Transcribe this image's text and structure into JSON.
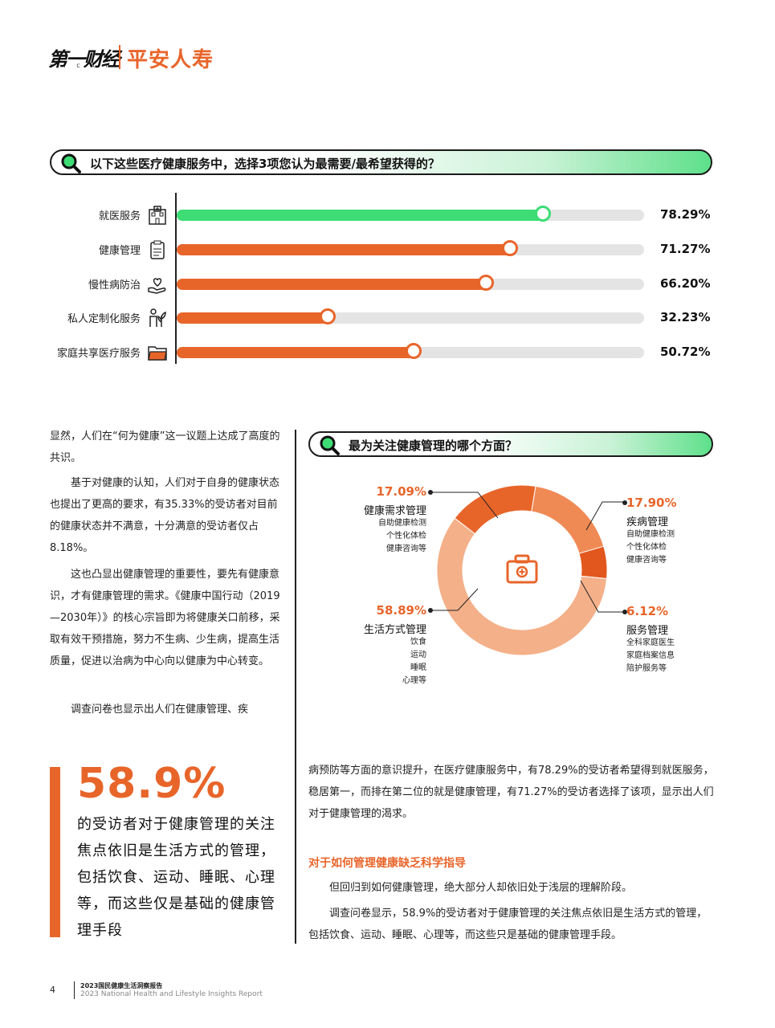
{
  "header": {
    "logo_yicai": "第一财经",
    "logo_yicai_sub": "YICAI",
    "logo_pingan": "平安人寿"
  },
  "chart_question": "以下这些医疗健康服务中，选择3项您认为最需要/最希望获得的？",
  "chart_data": [
    {
      "type": "bar",
      "orientation": "horizontal",
      "title": "以下这些医疗健康服务中，选择3项您认为最需要/最希望获得的？",
      "categories": [
        "就医服务",
        "健康管理",
        "慢性病防治",
        "私人定制化服务",
        "家庭共享医疗服务"
      ],
      "values": [
        78.29,
        71.27,
        66.2,
        32.23,
        50.72
      ],
      "value_labels": [
        "78.29%",
        "71.27%",
        "66.20%",
        "32.23%",
        "50.72%"
      ],
      "icons": [
        "hospital-icon",
        "clipboard-icon",
        "heart-hand-icon",
        "person-plant-icon",
        "folder-icon"
      ],
      "colors": [
        "#3ddc75",
        "#e8652a",
        "#e8652a",
        "#e8652a",
        "#e8652a"
      ],
      "xlim": [
        0,
        100
      ]
    },
    {
      "type": "pie",
      "donut": true,
      "title": "最为关注健康管理的哪个方面？",
      "slices": [
        {
          "label": "健康需求管理",
          "value": 17.09,
          "pct": "17.09%",
          "items": [
            "自助健康检测",
            "个性化体检",
            "健康咨询等"
          ],
          "color": "#e8652a"
        },
        {
          "label": "疾病管理",
          "value": 17.9,
          "pct": "17.90%",
          "items": [
            "自助健康检测",
            "个性化体检",
            "健康咨询等"
          ],
          "color": "#f08a55"
        },
        {
          "label": "服务管理",
          "value": 6.12,
          "pct": "6.12%",
          "items": [
            "全科家庭医生",
            "家庭档案信息",
            "陪护服务等"
          ],
          "color": "#e2571d"
        },
        {
          "label": "生活方式管理",
          "value": 58.89,
          "pct": "58.89%",
          "items": [
            "饮食",
            "运动",
            "睡眠",
            "心理等"
          ],
          "color": "#f4b089"
        }
      ],
      "center_icon": "medical-kit-icon"
    }
  ],
  "donut_question": "最为关注健康管理的哪个方面？",
  "left_paragraphs": [
    "显然，人们在“何为健康”这一议题上达成了高度的共识。",
    "基于对健康的认知，人们对于自身的健康状态也提出了更高的要求，有35.33%的受访者对目前的健康状态并不满意，十分满意的受访者仅占8.18%。",
    "这也凸显出健康管理的重要性，要先有健康意识，才有健康管理的需求。《健康中国行动（2019—2030年）》的核心宗旨即为将健康关口前移，采取有效干预措施，努力不生病、少生病，提高生活质量，促进以治病为中心向以健康为中心转变。",
    "调查问卷也显示出人们在健康管理、疾"
  ],
  "highlight": {
    "number": "58.9%",
    "text": "的受访者对于健康管理的关注焦点依旧是生活方式的管理，包括饮食、运动、睡眠、心理等，而这些仅是基础的健康管理手段"
  },
  "right_paragraph_1": "病预防等方面的意识提升，在医疗健康服务中，有78.29%的受访者希望得到就医服务，稳居第一，而排在第二位的就是健康管理，有71.27%的受访者选择了该项，显示出人们对于健康管理的渴求。",
  "section_heading": "对于如何管理健康缺乏科学指导",
  "right_paragraph_2": "但回归到如何健康管理，绝大部分人却依旧处于浅层的理解阶段。",
  "right_paragraph_3": "调查问卷显示，58.9%的受访者对于健康管理的关注焦点依旧是生活方式的管理，包括饮食、运动、睡眠、心理等，而这些只是基础的健康管理手段。",
  "footer": {
    "page_number": "4",
    "title_cn": "2023国民健康生活洞察报告",
    "title_en": "2023 National Health and Lifestyle Insights Report"
  }
}
